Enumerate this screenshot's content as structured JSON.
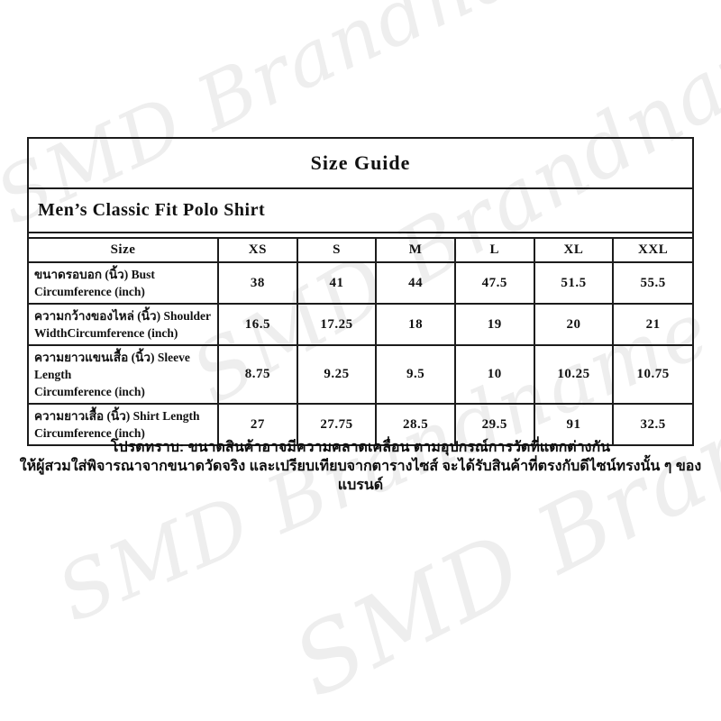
{
  "watermark": {
    "text": "SMD Brandname",
    "color": "#eeeeee"
  },
  "size_guide": {
    "title": "Size Guide",
    "product_name": "Men’s Classic Fit Polo Shirt",
    "table": {
      "columns": [
        "Size",
        "XS",
        "S",
        "M",
        "L",
        "XL",
        "XXL"
      ],
      "rows": [
        {
          "label_line1": "ขนาดรอบอก (นิ้ว) Bust",
          "label_line2": "Circumference (inch)",
          "values": [
            "38",
            "41",
            "44",
            "47.5",
            "51.5",
            "55.5"
          ]
        },
        {
          "label_line1": "ความกว้างของไหล่ (นิ้ว) Shoulder",
          "label_line2": "WidthCircumference (inch)",
          "values": [
            "16.5",
            "17.25",
            "18",
            "19",
            "20",
            "21"
          ]
        },
        {
          "label_line1": "ความยาวแขนเสื้อ (นิ้ว) Sleeve Length",
          "label_line2": "Circumference (inch)",
          "values": [
            "8.75",
            "9.25",
            "9.5",
            "10",
            "10.25",
            "10.75"
          ]
        },
        {
          "label_line1": "ความยาวเสื้อ (นิ้ว) Shirt Length",
          "label_line2": "Circumference (inch)",
          "values": [
            "27",
            "27.75",
            "28.5",
            "29.5",
            "91",
            "32.5"
          ]
        }
      ]
    }
  },
  "footer": {
    "line1": "โปรดทราบ: ขนาดสินค้าอาจมีความคลาดเคลื่อน ตามอุปกรณ์การวัดที่แตกต่างกัน",
    "line2": "ให้ผู้สวมใส่พิจารณาจากขนาดวัดจริง และเปรียบเทียบจากตารางไซส์ จะได้รับสินค้าที่ตรงกับดีไซน์ทรงนั้น ๆ ของแบรนด์"
  }
}
